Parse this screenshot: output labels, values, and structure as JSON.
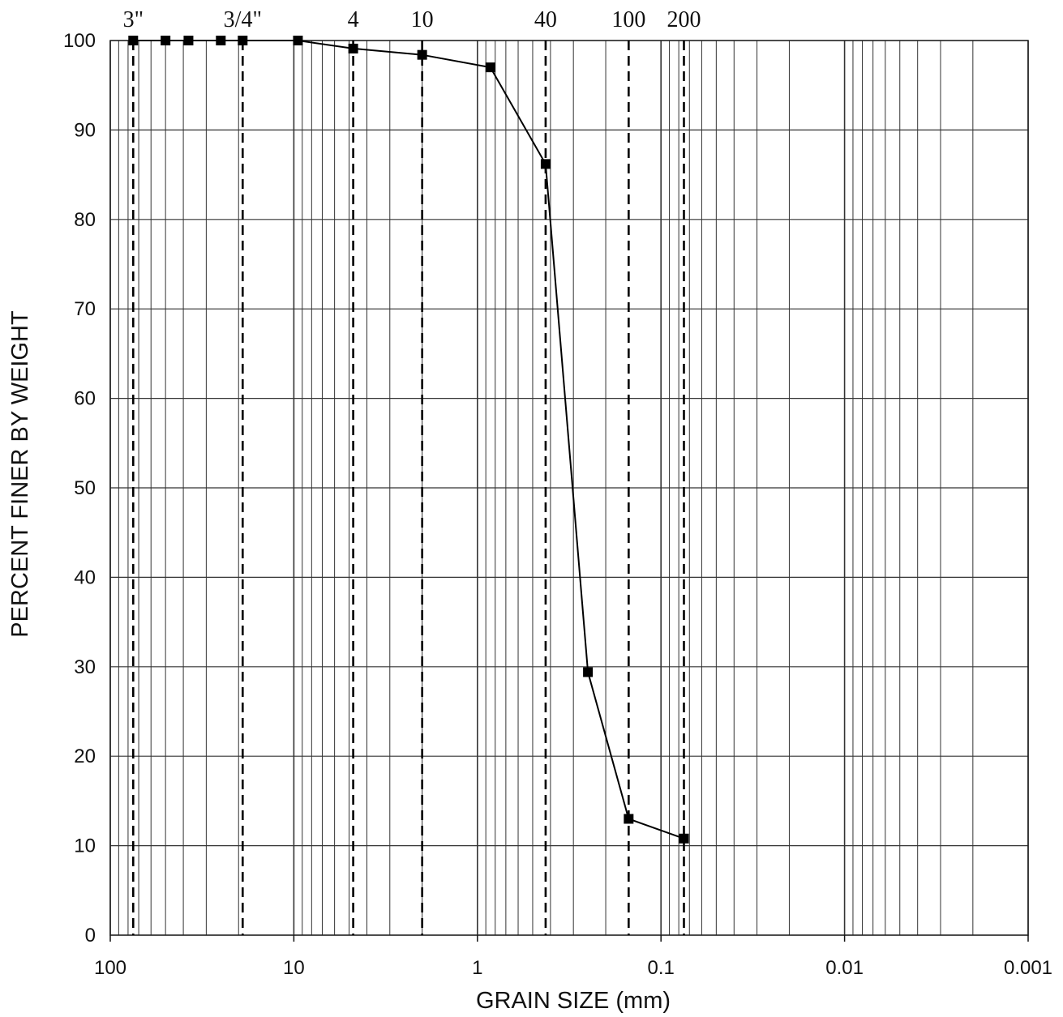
{
  "chart_data": {
    "type": "scatter",
    "xlabel": "GRAIN SIZE (mm)",
    "ylabel": "PERCENT FINER BY WEIGHT",
    "x_scale": "log",
    "x_reversed": true,
    "xlim": [
      100,
      0.001
    ],
    "ylim": [
      0,
      100
    ],
    "grid": true,
    "x_ticks": [
      {
        "value": 100,
        "label": "100"
      },
      {
        "value": 10,
        "label": "10"
      },
      {
        "value": 1,
        "label": "1"
      },
      {
        "value": 0.1,
        "label": "0.1"
      },
      {
        "value": 0.01,
        "label": "0.01"
      },
      {
        "value": 0.001,
        "label": "0.001"
      }
    ],
    "y_ticks": [
      {
        "value": 0,
        "label": "0"
      },
      {
        "value": 10,
        "label": "10"
      },
      {
        "value": 20,
        "label": "20"
      },
      {
        "value": 30,
        "label": "30"
      },
      {
        "value": 40,
        "label": "40"
      },
      {
        "value": 50,
        "label": "50"
      },
      {
        "value": 60,
        "label": "60"
      },
      {
        "value": 70,
        "label": "70"
      },
      {
        "value": 80,
        "label": "80"
      },
      {
        "value": 90,
        "label": "90"
      },
      {
        "value": 100,
        "label": "100"
      }
    ],
    "sieve_lines": [
      {
        "label": "3\"",
        "size_mm": 75
      },
      {
        "label": "3/4\"",
        "size_mm": 19
      },
      {
        "label": "4",
        "size_mm": 4.75
      },
      {
        "label": "10",
        "size_mm": 2.0
      },
      {
        "label": "40",
        "size_mm": 0.425
      },
      {
        "label": "100",
        "size_mm": 0.15
      },
      {
        "label": "200",
        "size_mm": 0.075
      }
    ],
    "series": [
      {
        "x": [
          75,
          50,
          37.5,
          25,
          19,
          9.5,
          4.75,
          2.0,
          0.85,
          0.425,
          0.25,
          0.15,
          0.075
        ],
        "y": [
          100,
          100,
          100,
          100,
          100,
          100,
          99.1,
          98.4,
          97.0,
          86.2,
          29.4,
          13.0,
          10.8
        ]
      }
    ]
  },
  "colors": {
    "line": "#000000",
    "grid": "#333333",
    "background": "#ffffff"
  }
}
